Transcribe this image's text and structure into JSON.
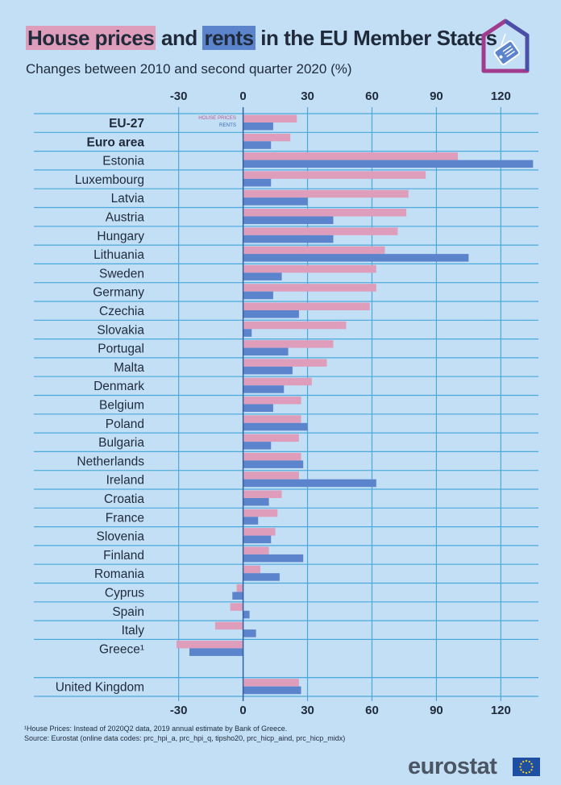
{
  "title": {
    "part1": "House prices",
    "part2": " and ",
    "part3": "rents",
    "part4": " in the EU Member States"
  },
  "subtitle": "Changes between 2010 and second quarter 2020 (%)",
  "colors": {
    "house_prices": "#de9dbb",
    "rents": "#5b84cc",
    "background": "#c3dff5",
    "gridline": "#4aa9db"
  },
  "chart_data": {
    "type": "bar",
    "orientation": "horizontal",
    "xlim": [
      -31,
      136
    ],
    "x_ticks": [
      "-30",
      "0",
      "30",
      "60",
      "90",
      "120"
    ],
    "legend": [
      "HOUSE PRICES",
      "RENTS"
    ],
    "categories": [
      "EU-27",
      "Euro area",
      "Estonia",
      "Luxembourg",
      "Latvia",
      "Austria",
      "Hungary",
      "Lithuania",
      "Sweden",
      "Germany",
      "Czechia",
      "Slovakia",
      "Portugal",
      "Malta",
      "Denmark",
      "Belgium",
      "Poland",
      "Bulgaria",
      "Netherlands",
      "Ireland",
      "Croatia",
      "France",
      "Slovenia",
      "Finland",
      "Romania",
      "Cyprus",
      "Spain",
      "Italy",
      "Greece¹",
      "United Kingdom"
    ],
    "bold_categories": [
      "EU-27",
      "Euro area"
    ],
    "series": [
      {
        "name": "HOUSE PRICES",
        "values": [
          25,
          22,
          100,
          85,
          77,
          76,
          72,
          66,
          62,
          62,
          59,
          48,
          42,
          39,
          32,
          27,
          27,
          26,
          27,
          26,
          18,
          16,
          15,
          12,
          8,
          -3,
          -6,
          -13,
          -31,
          26
        ]
      },
      {
        "name": "RENTS",
        "values": [
          14,
          13,
          135,
          13,
          30,
          42,
          42,
          105,
          18,
          14,
          26,
          4,
          21,
          23,
          19,
          14,
          30,
          13,
          28,
          62,
          12,
          7,
          13,
          28,
          17,
          -5,
          3,
          6,
          -25,
          27
        ]
      }
    ]
  },
  "footnote": {
    "line1": "¹House Prices: Instead of 2020Q2 data, 2019 annual estimate by Bank of Greece.",
    "line2": "Source: Eurostat (online data codes: prc_hpi_a, prc_hpi_q, tipsho20, prc_hicp_aind, prc_hicp_midx)"
  },
  "brand": "eurostat"
}
